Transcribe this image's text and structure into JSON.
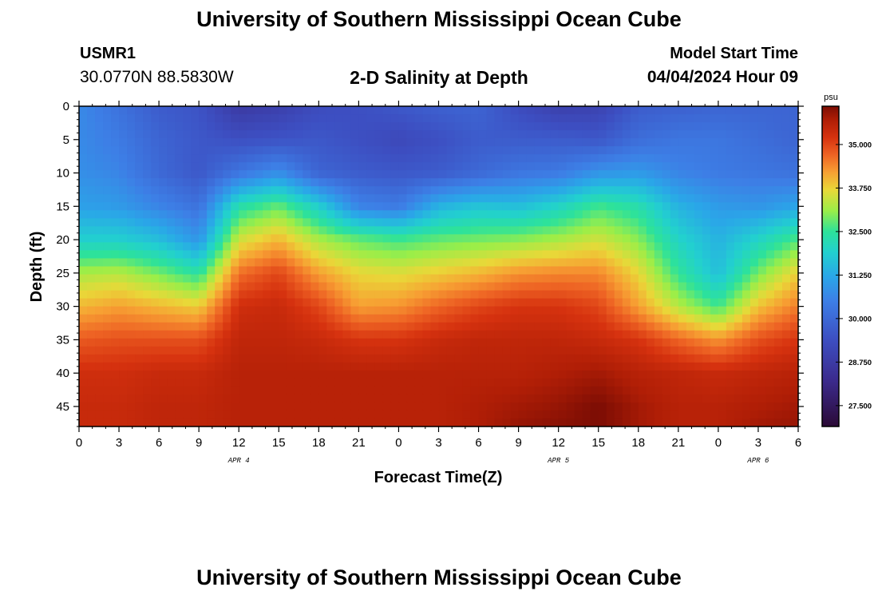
{
  "header": {
    "title": "University of Southern Mississippi Ocean Cube",
    "station_id": "USMR1",
    "coordinates": "30.0770N  88.5830W",
    "subtitle": "2-D Salinity at Depth",
    "model_start_label": "Model Start Time",
    "model_start_value": "04/04/2024 Hour 09"
  },
  "footer": {
    "title": "University of Southern Mississippi Ocean Cube"
  },
  "chart_data": {
    "type": "heatmap",
    "title": "2-D Salinity at Depth",
    "xlabel": "Forecast Time(Z)",
    "ylabel": "Depth (ft)",
    "colorbar_unit": "psu",
    "x_range": [
      0,
      54
    ],
    "y_range": [
      0,
      48
    ],
    "x_ticks": [
      0,
      3,
      6,
      9,
      12,
      15,
      18,
      21,
      24,
      27,
      30,
      33,
      36,
      39,
      42,
      45,
      48,
      51,
      54
    ],
    "x_tick_labels": [
      "0",
      "3",
      "6",
      "9",
      "12",
      "15",
      "18",
      "21",
      "0",
      "3",
      "6",
      "9",
      "12",
      "15",
      "18",
      "21",
      "0",
      "3",
      "6"
    ],
    "y_ticks": [
      0,
      5,
      10,
      15,
      20,
      25,
      30,
      35,
      40,
      45
    ],
    "y_tick_labels": [
      "0",
      "5",
      "10",
      "15",
      "20",
      "25",
      "30",
      "35",
      "40",
      "45"
    ],
    "date_labels": [
      {
        "hour": 12,
        "label": "APR 4"
      },
      {
        "hour": 36,
        "label": "APR 5"
      },
      {
        "hour": 51,
        "label": "APR 6"
      }
    ],
    "color_range": [
      26.9,
      36.1
    ],
    "colorbar_ticks": [
      27.5,
      28.75,
      30.0,
      31.25,
      32.5,
      33.75,
      35.0
    ],
    "colorbar_labels": [
      "27.500",
      "28.750",
      "30.000",
      "31.250",
      "32.500",
      "33.750",
      "35.000"
    ],
    "colormap": [
      {
        "v": 26.9,
        "c": "#2b0a36"
      },
      {
        "v": 28.2,
        "c": "#3b2a8c"
      },
      {
        "v": 29.4,
        "c": "#3d4fc2"
      },
      {
        "v": 30.5,
        "c": "#3d7fe6"
      },
      {
        "v": 31.2,
        "c": "#2aa6e8"
      },
      {
        "v": 31.9,
        "c": "#22d0cf"
      },
      {
        "v": 32.5,
        "c": "#2de29a"
      },
      {
        "v": 33.1,
        "c": "#9bee48"
      },
      {
        "v": 33.7,
        "c": "#e9d838"
      },
      {
        "v": 34.2,
        "c": "#f7a033"
      },
      {
        "v": 34.7,
        "c": "#ee6424"
      },
      {
        "v": 35.2,
        "c": "#d6320f"
      },
      {
        "v": 35.7,
        "c": "#b01e06"
      },
      {
        "v": 36.1,
        "c": "#7c0d04"
      }
    ],
    "depths": [
      0,
      5,
      10,
      15,
      20,
      25,
      30,
      35,
      40,
      45,
      48
    ],
    "times": [
      0,
      3,
      6,
      9,
      12,
      15,
      18,
      21,
      24,
      27,
      30,
      33,
      36,
      39,
      42,
      45,
      48,
      51,
      54
    ],
    "salinity": [
      [
        30.7,
        30.2,
        29.7,
        29.5,
        28.7,
        28.9,
        29.3,
        29.4,
        29.6,
        29.8,
        29.9,
        29.3,
        28.9,
        29.0,
        29.7,
        29.8,
        29.9,
        29.9,
        29.9
      ],
      [
        30.7,
        30.4,
        29.9,
        29.6,
        29.4,
        29.5,
        29.6,
        29.4,
        29.2,
        29.4,
        29.7,
        29.7,
        29.7,
        29.6,
        30.1,
        30.3,
        30.3,
        30.1,
        29.9
      ],
      [
        30.8,
        30.6,
        30.0,
        29.6,
        30.3,
        30.8,
        29.9,
        29.7,
        29.6,
        29.7,
        30.0,
        30.3,
        30.4,
        30.9,
        31.0,
        30.6,
        30.4,
        30.3,
        30.2
      ],
      [
        31.1,
        31.0,
        30.6,
        30.2,
        32.3,
        32.8,
        31.9,
        30.6,
        30.4,
        31.4,
        31.7,
        31.6,
        32.0,
        32.6,
        32.3,
        31.4,
        31.0,
        30.9,
        31.2
      ],
      [
        31.9,
        31.9,
        31.6,
        30.9,
        33.5,
        34.0,
        33.2,
        32.8,
        32.6,
        32.8,
        32.9,
        33.0,
        33.2,
        33.5,
        33.0,
        32.0,
        31.4,
        32.0,
        32.7
      ],
      [
        33.2,
        33.3,
        32.9,
        32.4,
        34.6,
        35.0,
        34.2,
        33.7,
        33.6,
        33.8,
        34.0,
        34.3,
        34.4,
        34.4,
        33.7,
        32.5,
        31.6,
        32.9,
        33.8
      ],
      [
        34.0,
        34.2,
        34.0,
        33.8,
        35.3,
        35.4,
        35.0,
        34.2,
        34.3,
        34.7,
        35.0,
        35.2,
        35.2,
        35.0,
        34.2,
        33.3,
        32.6,
        33.9,
        34.5
      ],
      [
        34.8,
        34.9,
        34.9,
        34.9,
        35.5,
        35.5,
        35.4,
        35.2,
        35.2,
        35.4,
        35.5,
        35.5,
        35.5,
        35.4,
        35.2,
        34.7,
        34.3,
        34.9,
        35.2
      ],
      [
        35.3,
        35.3,
        35.4,
        35.4,
        35.6,
        35.6,
        35.6,
        35.6,
        35.6,
        35.6,
        35.6,
        35.6,
        35.7,
        35.8,
        35.6,
        35.5,
        35.4,
        35.5,
        35.6
      ],
      [
        35.4,
        35.4,
        35.5,
        35.5,
        35.6,
        35.6,
        35.6,
        35.6,
        35.6,
        35.6,
        35.7,
        35.8,
        35.9,
        36.1,
        35.8,
        35.6,
        35.6,
        35.7,
        35.8
      ],
      [
        35.4,
        35.4,
        35.5,
        35.5,
        35.6,
        35.6,
        35.6,
        35.6,
        35.6,
        35.6,
        35.7,
        35.9,
        36.0,
        36.1,
        35.8,
        35.6,
        35.6,
        35.8,
        35.9
      ]
    ]
  }
}
